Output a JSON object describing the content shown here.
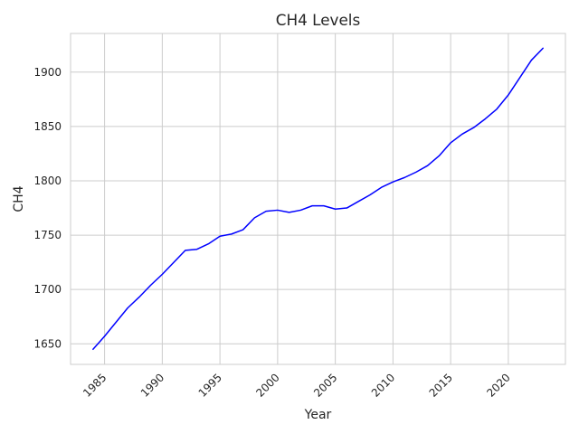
{
  "chart_data": {
    "type": "line",
    "title": "CH4 Levels",
    "xlabel": "Year",
    "ylabel": "CH4",
    "xlim": [
      1982.05,
      1924.95
    ],
    "ylim": [
      1631.1,
      1935.6
    ],
    "x_ticks": [
      1985,
      1990,
      1995,
      2000,
      2005,
      2010,
      2015,
      2020
    ],
    "y_ticks": [
      1650,
      1700,
      1750,
      1800,
      1850,
      1900
    ],
    "grid": true,
    "series": [
      {
        "color": "#0000ff",
        "x": [
          1984,
          1985,
          1986,
          1987,
          1988,
          1989,
          1990,
          1991,
          1992,
          1993,
          1994,
          1995,
          1996,
          1997,
          1998,
          1999,
          2000,
          2001,
          2002,
          2003,
          2004,
          2005,
          2006,
          2007,
          2008,
          2009,
          2010,
          2011,
          2012,
          2013,
          2014,
          2015,
          2016,
          2017,
          2018,
          2019,
          2020,
          2021,
          2022,
          2023
        ],
        "y": [
          1645,
          1657,
          1670,
          1683,
          1693,
          1704,
          1714,
          1725,
          1736,
          1737,
          1742,
          1749,
          1751,
          1755,
          1766,
          1772,
          1773,
          1771,
          1773,
          1777,
          1777,
          1774,
          1775,
          1781,
          1787,
          1794,
          1799,
          1803,
          1808,
          1814,
          1823,
          1835,
          1843,
          1849,
          1857,
          1866,
          1879,
          1895,
          1911,
          1922
        ]
      }
    ]
  }
}
